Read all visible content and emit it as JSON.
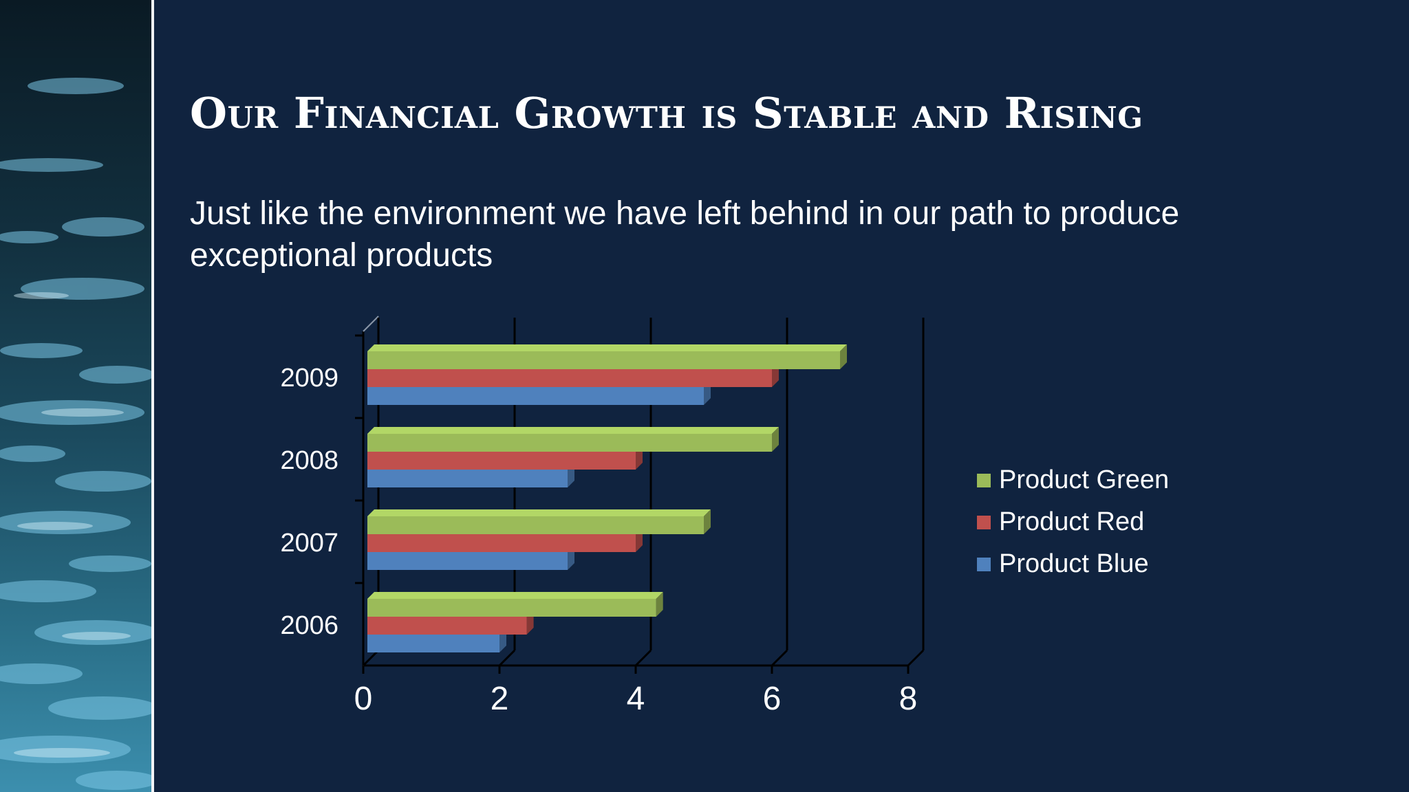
{
  "slide": {
    "title": "Our Financial Growth is Stable and Rising",
    "subtitle": "Just like the environment we have left behind in our path to produce exceptional products"
  },
  "chart_data": {
    "type": "bar",
    "orientation": "horizontal",
    "style": "3d-clustered",
    "categories": [
      "2006",
      "2007",
      "2008",
      "2009"
    ],
    "series": [
      {
        "name": "Product Blue",
        "values": [
          2,
          3,
          3,
          5
        ],
        "color": "#4f81bd"
      },
      {
        "name": "Product Red",
        "values": [
          2.4,
          4,
          4,
          6
        ],
        "color": "#c0504d"
      },
      {
        "name": "Product Green",
        "values": [
          4.3,
          5,
          6,
          7
        ],
        "color": "#9bbb59"
      }
    ],
    "xlim": [
      0,
      8
    ],
    "xticks": [
      "0",
      "2",
      "4",
      "6",
      "8"
    ],
    "grid": true,
    "legend_position": "right"
  }
}
